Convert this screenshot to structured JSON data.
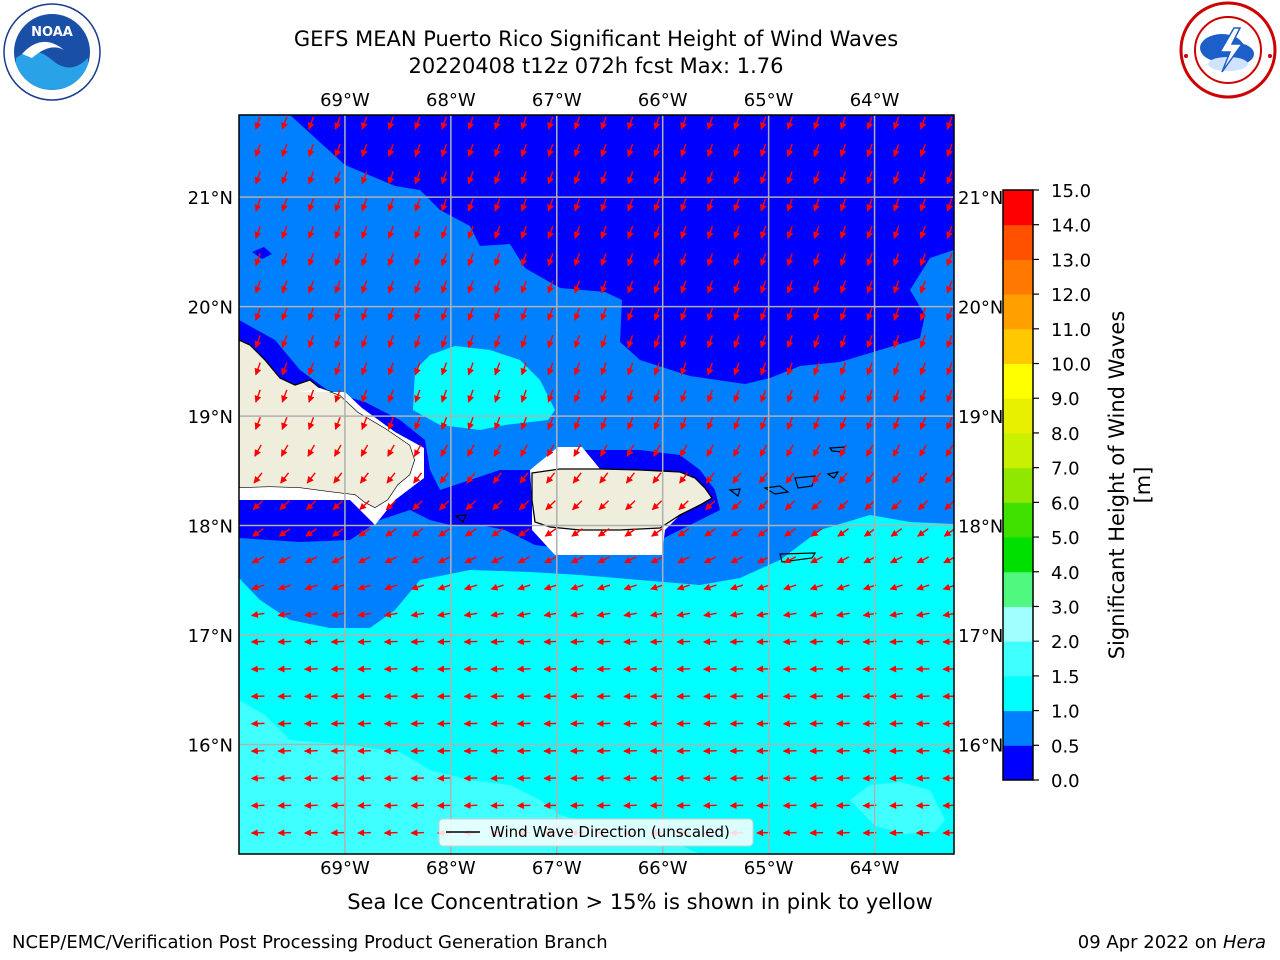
{
  "header": {
    "title_line1": "GEFS MEAN Puerto Rico Significant Height of Wind Waves",
    "title_line2": "20220408 t12z 072h fcst   Max: 1.76"
  },
  "map": {
    "lon_ticks": [
      {
        "value": -69,
        "label": "69°W"
      },
      {
        "value": -68,
        "label": "68°W"
      },
      {
        "value": -67,
        "label": "67°W"
      },
      {
        "value": -66,
        "label": "66°W"
      },
      {
        "value": -65,
        "label": "65°W"
      },
      {
        "value": -64,
        "label": "64°W"
      }
    ],
    "lat_ticks": [
      {
        "value": 21,
        "label": "21°N"
      },
      {
        "value": 20,
        "label": "20°N"
      },
      {
        "value": 19,
        "label": "19°N"
      },
      {
        "value": 18,
        "label": "18°N"
      },
      {
        "value": 17,
        "label": "17°N"
      },
      {
        "value": 16,
        "label": "16°N"
      }
    ],
    "lon_range": [
      -70.0,
      -63.25
    ],
    "lat_range": [
      15.0,
      21.75
    ],
    "grid": true,
    "legend_label": "Wind Wave Direction (unscaled)",
    "legend_placement": "bottom-center",
    "arrow_color": "#ff0000",
    "land_color": "#efeedd"
  },
  "colorbar": {
    "label": "Significant Height of Wind Waves [m]",
    "levels": [
      "0.0",
      "0.5",
      "1.0",
      "1.5",
      "2.0",
      "3.0",
      "4.0",
      "5.0",
      "6.0",
      "7.0",
      "8.0",
      "9.0",
      "10.0",
      "11.0",
      "12.0",
      "13.0",
      "14.0",
      "15.0"
    ],
    "colors": [
      "#0000ff",
      "#0080ff",
      "#00ffff",
      "#40ffff",
      "#a0ffff",
      "#50f880",
      "#00e000",
      "#40e000",
      "#90e800",
      "#c8f000",
      "#e8f000",
      "#ffff00",
      "#ffc800",
      "#ffa000",
      "#ff7800",
      "#ff5000",
      "#ff0000"
    ]
  },
  "footer": {
    "ice_note": "Sea Ice Concentration > 15% is shown in pink to yellow",
    "left": "NCEP/EMC/Verification Post Processing Product Generation Branch",
    "date": "09 Apr 2022 on ",
    "host": "Hera"
  }
}
